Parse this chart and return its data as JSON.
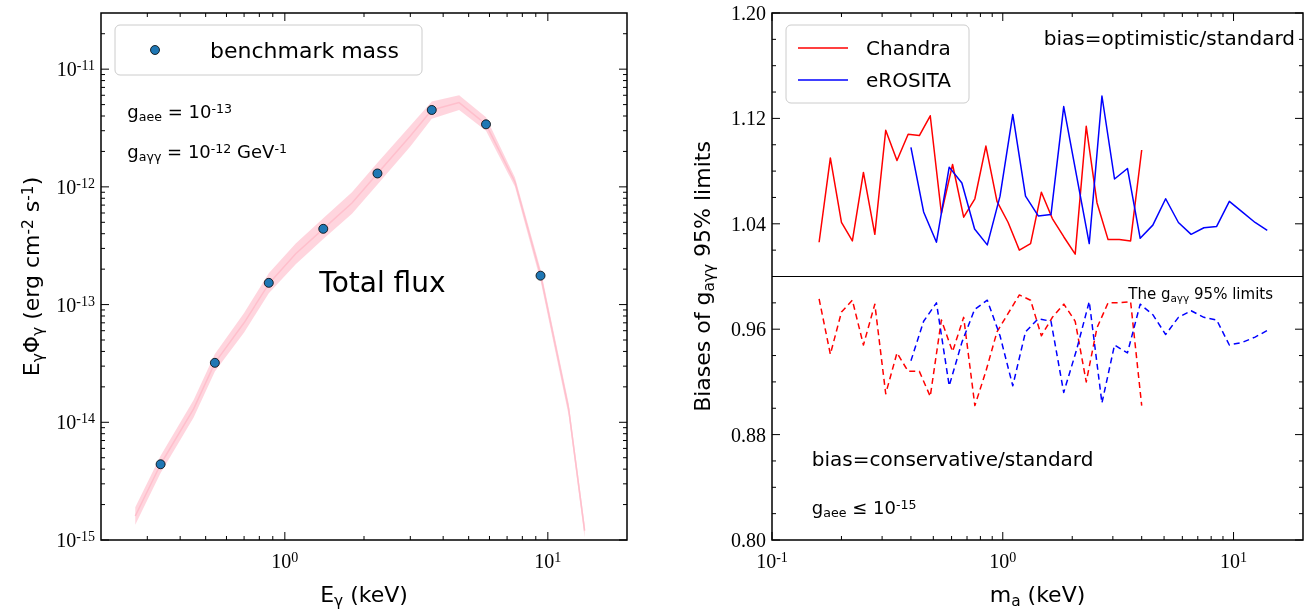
{
  "chart_data": [
    {
      "type": "scatter",
      "xlabel": "E$_{γ}$ (keV)",
      "ylabel": "E$_{γ}$Φ$_{γ}$ (erg cm$^{-2}$ s$^{-1}$)",
      "log": "xy",
      "grid": false,
      "legend": "top left",
      "xlim": [
        0.2,
        20
      ],
      "ylim": [
        1e-15,
        3e-11
      ],
      "xticks": [
        {
          "value": 1,
          "label": "10$^{0}$"
        },
        {
          "value": 10,
          "label": "10$^{1}$"
        },
        {
          "value": 0.3,
          "label": null
        },
        {
          "value": 0.4,
          "label": null
        },
        {
          "value": 0.5,
          "label": null
        },
        {
          "value": 0.6,
          "label": null
        },
        {
          "value": 0.7,
          "label": null
        },
        {
          "value": 0.8,
          "label": null
        },
        {
          "value": 0.9,
          "label": null
        },
        {
          "value": 2,
          "label": null
        },
        {
          "value": 3,
          "label": null
        },
        {
          "value": 4,
          "label": null
        },
        {
          "value": 5,
          "label": null
        },
        {
          "value": 6,
          "label": null
        },
        {
          "value": 7,
          "label": null
        },
        {
          "value": 8,
          "label": null
        },
        {
          "value": 9,
          "label": null
        }
      ],
      "yticks": [
        {
          "value": 1e-15,
          "label": "10$^{-15}$"
        },
        {
          "value": 1e-14,
          "label": "10$^{-14}$"
        },
        {
          "value": 1e-13,
          "label": "10$^{-13}$"
        },
        {
          "value": 1e-12,
          "label": "10$^{-12}$"
        },
        {
          "value": 1e-11,
          "label": "10$^{-11}$"
        },
        {
          "value": 2e-15,
          "label": null
        },
        {
          "value": 3e-15,
          "label": null
        },
        {
          "value": 4e-15,
          "label": null
        },
        {
          "value": 5e-15,
          "label": null
        },
        {
          "value": 6e-15,
          "label": null
        },
        {
          "value": 7e-15,
          "label": null
        },
        {
          "value": 8e-15,
          "label": null
        },
        {
          "value": 9e-15,
          "label": null
        },
        {
          "value": 2e-14,
          "label": null
        },
        {
          "value": 3e-14,
          "label": null
        },
        {
          "value": 4e-14,
          "label": null
        },
        {
          "value": 5e-14,
          "label": null
        },
        {
          "value": 6e-14,
          "label": null
        },
        {
          "value": 7e-14,
          "label": null
        },
        {
          "value": 8e-14,
          "label": null
        },
        {
          "value": 9e-14,
          "label": null
        },
        {
          "value": 2e-13,
          "label": null
        },
        {
          "value": 3e-13,
          "label": null
        },
        {
          "value": 4e-13,
          "label": null
        },
        {
          "value": 5e-13,
          "label": null
        },
        {
          "value": 6e-13,
          "label": null
        },
        {
          "value": 7e-13,
          "label": null
        },
        {
          "value": 8e-13,
          "label": null
        },
        {
          "value": 9e-13,
          "label": null
        },
        {
          "value": 2e-12,
          "label": null
        },
        {
          "value": 3e-12,
          "label": null
        },
        {
          "value": 4e-12,
          "label": null
        },
        {
          "value": 5e-12,
          "label": null
        },
        {
          "value": 6e-12,
          "label": null
        },
        {
          "value": 7e-12,
          "label": null
        },
        {
          "value": 8e-12,
          "label": null
        },
        {
          "value": 9e-12,
          "label": null
        },
        {
          "value": 2e-11,
          "label": null
        }
      ],
      "annotations": [
        "g$_{aee}$ = 10$^{-13}$",
        "g$_{aγγ}$ = 10$^{-12}$ GeV$^{-1}$",
        "Total flux"
      ],
      "series": [
        {
          "type": "line",
          "marker": "none",
          "color": "#ffbfcc",
          "x": [
            0.27,
            0.337,
            0.45,
            0.542,
            0.7,
            0.869,
            1.1,
            1.4,
            1.8,
            2.25,
            3.0,
            3.62,
            4.6,
            5.82,
            7.5,
            9.38,
            12,
            13.8
          ],
          "values": [
            1.6e-15,
            4.4e-15,
            1.3e-14,
            3.2e-14,
            7e-14,
            1.5e-13,
            2.7e-13,
            4.4e-13,
            7.3e-13,
            1.3e-12,
            2.7e-12,
            4.5e-12,
            5.2e-12,
            3.4e-12,
            1.1e-12,
            1.8e-13,
            1.3e-14,
            1.2e-15
          ],
          "lower": [
            1.35e-15,
            3.7e-15,
            1.1e-14,
            2.7e-14,
            5.8e-14,
            1.25e-13,
            2.2e-13,
            3.6e-13,
            5.9e-13,
            1.05e-12,
            2.2e-12,
            3.8e-12,
            4.5e-12,
            3e-12,
            1e-12,
            1.6e-13,
            1.15e-14,
            1.05e-15
          ],
          "upper": [
            1.9e-15,
            5.2e-15,
            1.55e-14,
            3.8e-14,
            8.5e-14,
            1.85e-13,
            3.3e-13,
            5.4e-13,
            9e-13,
            1.6e-12,
            3.3e-12,
            5.3e-12,
            6e-12,
            3.9e-12,
            1.2e-12,
            2e-13,
            1.45e-14,
            1.35e-15
          ]
        },
        {
          "marker": "circle",
          "name": "benchmark mass",
          "color": "#1f77b4",
          "x": [
            0.337,
            0.542,
            0.869,
            1.4,
            2.25,
            3.62,
            5.82,
            9.38
          ],
          "values": [
            4.4e-15,
            3.2e-14,
            1.53e-13,
            4.4e-13,
            1.3e-12,
            4.5e-12,
            3.4e-12,
            1.76e-13
          ]
        }
      ]
    },
    {
      "type": "line",
      "xlabel": "m$_{a}$ (keV)",
      "ylabel": "Biases of g$_{aγγ}$ 95% limits",
      "log": "x",
      "grid": false,
      "legend": "top left",
      "xlim": [
        0.1,
        20
      ],
      "ylim": [
        0.8,
        1.2
      ],
      "xticks": [
        {
          "value": 0.1,
          "label": "10$^{-1}$"
        },
        {
          "value": 1,
          "label": "10$^{0}$"
        },
        {
          "value": 10,
          "label": "10$^{1}$"
        },
        {
          "value": 0.2,
          "label": null
        },
        {
          "value": 0.3,
          "label": null
        },
        {
          "value": 0.4,
          "label": null
        },
        {
          "value": 0.5,
          "label": null
        },
        {
          "value": 0.6,
          "label": null
        },
        {
          "value": 0.7,
          "label": null
        },
        {
          "value": 0.8,
          "label": null
        },
        {
          "value": 0.9,
          "label": null
        },
        {
          "value": 2,
          "label": null
        },
        {
          "value": 3,
          "label": null
        },
        {
          "value": 4,
          "label": null
        },
        {
          "value": 5,
          "label": null
        },
        {
          "value": 6,
          "label": null
        },
        {
          "value": 7,
          "label": null
        },
        {
          "value": 8,
          "label": null
        },
        {
          "value": 9,
          "label": null
        }
      ],
      "yticks": [
        {
          "value": 0.8,
          "label": "0.80"
        },
        0.88,
        0.96,
        1.04,
        1.12,
        {
          "value": 1.2,
          "label": "1.20"
        },
        {
          "value": 0.82,
          "label": null
        },
        {
          "value": 0.84,
          "label": null
        },
        {
          "value": 0.86,
          "label": null
        },
        {
          "value": 0.9,
          "label": null
        },
        {
          "value": 0.92,
          "label": null
        },
        {
          "value": 0.94,
          "label": null
        },
        {
          "value": 0.98,
          "label": null
        },
        {
          "value": 1.0,
          "label": null
        },
        {
          "value": 1.02,
          "label": null
        },
        {
          "value": 1.06,
          "label": null
        },
        {
          "value": 1.08,
          "label": null
        },
        {
          "value": 1.1,
          "label": null
        },
        {
          "value": 1.14,
          "label": null
        },
        {
          "value": 1.16,
          "label": null
        },
        {
          "value": 1.18,
          "label": null
        }
      ],
      "ref_lines": [
        {
          "axis": "y",
          "value": 1.0,
          "label": "The g$_{aγγ}$ 95% limits",
          "color": "#000000"
        }
      ],
      "annotations": [
        "bias=optimistic/standard",
        "bias=conservative/standard",
        "g$_{aee}$ ≤ 10$^{-15}$"
      ],
      "series": [
        {
          "name": "Chandra",
          "color": "#ff0000",
          "line_style": "solid",
          "x": [
            0.16,
            0.179,
            0.2,
            0.223,
            0.249,
            0.279,
            0.311,
            0.348,
            0.389,
            0.435,
            0.485,
            0.542,
            0.606,
            0.677,
            0.757,
            0.845,
            0.944,
            1.055,
            1.18,
            1.32,
            1.47,
            1.64,
            1.84,
            2.06,
            2.3,
            2.56,
            2.86,
            3.2,
            3.58,
            4.0
          ],
          "values": [
            1.026,
            1.09,
            1.041,
            1.027,
            1.079,
            1.032,
            1.111,
            1.088,
            1.108,
            1.107,
            1.122,
            1.048,
            1.085,
            1.045,
            1.059,
            1.099,
            1.057,
            1.041,
            1.02,
            1.025,
            1.064,
            1.044,
            1.03,
            1.017,
            1.114,
            1.056,
            1.028,
            1.028,
            1.027,
            1.096
          ]
        },
        {
          "name": "eROSITA",
          "color": "#0000ff",
          "line_style": "solid",
          "x": [
            0.4,
            0.454,
            0.516,
            0.586,
            0.665,
            0.755,
            0.857,
            0.973,
            1.105,
            1.255,
            1.425,
            1.618,
            1.837,
            2.086,
            2.37,
            2.69,
            3.05,
            3.47,
            3.94,
            4.47,
            5.08,
            5.77,
            6.55,
            7.44,
            8.45,
            9.59,
            10.9,
            12.4,
            14.0
          ],
          "values": [
            1.098,
            1.049,
            1.026,
            1.083,
            1.071,
            1.036,
            1.024,
            1.061,
            1.123,
            1.061,
            1.046,
            1.047,
            1.129,
            1.077,
            1.025,
            1.137,
            1.074,
            1.082,
            1.029,
            1.039,
            1.059,
            1.041,
            1.032,
            1.037,
            1.038,
            1.057,
            1.049,
            1.041,
            1.035
          ]
        },
        {
          "color": "#ff0000",
          "line_style": "dashed",
          "x": [
            0.16,
            0.179,
            0.2,
            0.223,
            0.249,
            0.279,
            0.311,
            0.348,
            0.389,
            0.435,
            0.485,
            0.542,
            0.606,
            0.677,
            0.757,
            0.845,
            0.944,
            1.055,
            1.18,
            1.32,
            1.47,
            1.64,
            1.84,
            2.06,
            2.3,
            2.56,
            2.86,
            3.2,
            3.58,
            4.0
          ],
          "values": [
            0.983,
            0.941,
            0.973,
            0.982,
            0.948,
            0.979,
            0.911,
            0.942,
            0.928,
            0.928,
            0.909,
            0.967,
            0.943,
            0.969,
            0.902,
            0.928,
            0.958,
            0.972,
            0.986,
            0.982,
            0.955,
            0.969,
            0.979,
            0.966,
            0.92,
            0.961,
            0.98,
            0.98,
            0.981,
            0.902
          ]
        },
        {
          "color": "#0000ff",
          "line_style": "dashed",
          "x": [
            0.4,
            0.454,
            0.516,
            0.586,
            0.665,
            0.755,
            0.857,
            0.973,
            1.105,
            1.255,
            1.425,
            1.618,
            1.837,
            2.086,
            2.37,
            2.69,
            3.05,
            3.47,
            3.94,
            4.47,
            5.08,
            5.77,
            6.55,
            7.44,
            8.45,
            9.59,
            10.9,
            12.4,
            14.0
          ],
          "values": [
            0.936,
            0.966,
            0.98,
            0.917,
            0.95,
            0.975,
            0.982,
            0.955,
            0.917,
            0.958,
            0.968,
            0.966,
            0.912,
            0.944,
            0.981,
            0.904,
            0.948,
            0.942,
            0.979,
            0.971,
            0.956,
            0.969,
            0.974,
            0.969,
            0.967,
            0.948,
            0.95,
            0.954,
            0.959
          ]
        }
      ]
    }
  ]
}
